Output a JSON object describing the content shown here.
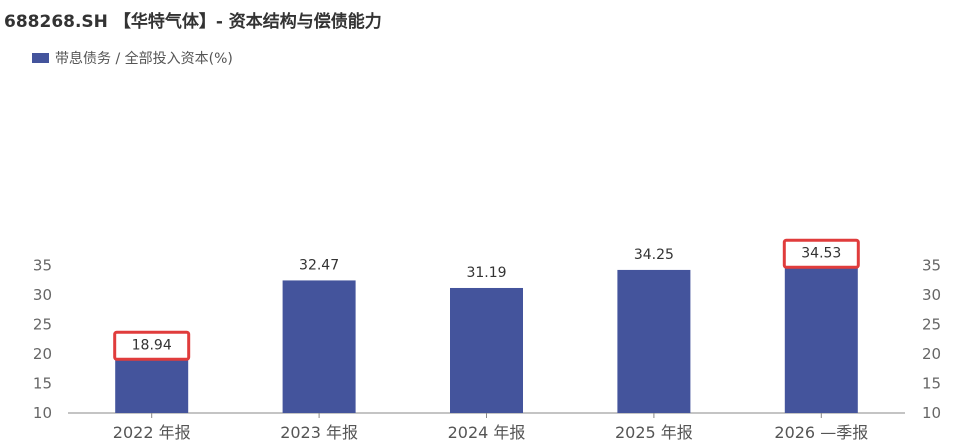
{
  "header": {
    "title": "688268.SH 【华特气体】- 资本结构与偿债能力"
  },
  "chart_data": {
    "type": "bar",
    "title": "688268.SH 【华特气体】- 资本结构与偿债能力",
    "categories": [
      "2022 年报",
      "2023 年报",
      "2024 年报",
      "2025 年报",
      "2026 —季报"
    ],
    "series": [
      {
        "name": "带息债务 / 全部投入资本(%)",
        "values": [
          18.94,
          32.47,
          31.19,
          34.25,
          34.53
        ]
      }
    ],
    "value_labels": [
      "18.94",
      "32.47",
      "31.19",
      "34.25",
      "34.53"
    ],
    "highlighted_indices": [
      0,
      4
    ],
    "ylim": [
      10,
      37
    ],
    "yticks": [
      "10",
      "15",
      "20",
      "25",
      "30",
      "35"
    ],
    "xlabel": "",
    "ylabel": "",
    "grid": false,
    "legend": "top-left",
    "colors": {
      "bar": "#44549c",
      "highlight": "#e03c3c",
      "axis": "#888888"
    }
  }
}
